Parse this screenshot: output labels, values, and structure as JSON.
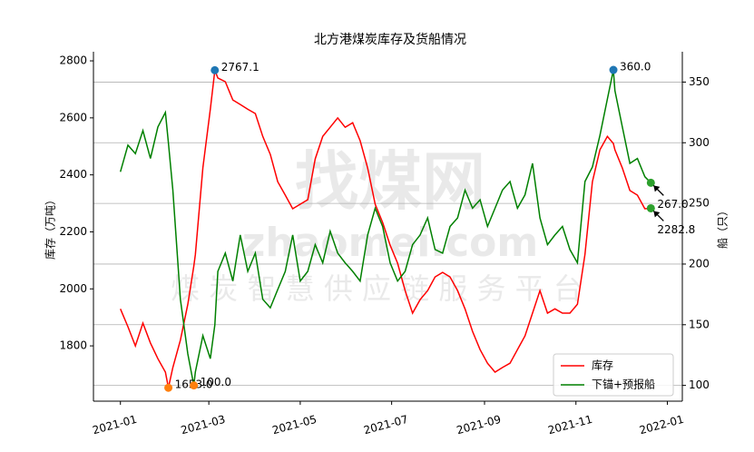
{
  "chart_data": {
    "type": "line",
    "title": "北方港煤炭库存及货船情况",
    "ylabel": "库存（万吨）",
    "y2label": "船（只）",
    "watermark": [
      "找煤网",
      "zhaomei.com",
      "煤 炭 智 慧 供 应 链 服 务 平 台"
    ],
    "x": [
      0,
      5,
      10,
      15,
      20,
      25,
      30,
      32,
      35,
      40,
      45,
      49,
      50,
      55,
      60,
      63,
      65,
      70,
      75,
      80,
      85,
      90,
      95,
      100,
      105,
      110,
      115,
      120,
      125,
      130,
      135,
      140,
      145,
      150,
      155,
      160,
      165,
      170,
      175,
      180,
      185,
      190,
      195,
      200,
      205,
      210,
      215,
      220,
      225,
      230,
      235,
      240,
      245,
      250,
      255,
      260,
      265,
      270,
      275,
      280,
      285,
      290,
      295,
      300,
      305,
      310,
      315,
      320,
      325,
      329,
      330,
      335,
      340,
      345,
      350,
      354
    ],
    "xlim": [
      -18,
      375
    ],
    "xticks": [
      {
        "value": 0,
        "label": "2021-01"
      },
      {
        "value": 59,
        "label": "2021-03"
      },
      {
        "value": 120,
        "label": "2021-05"
      },
      {
        "value": 181,
        "label": "2021-07"
      },
      {
        "value": 243,
        "label": "2021-09"
      },
      {
        "value": 304,
        "label": "2021-11"
      },
      {
        "value": 365,
        "label": "2022-01"
      }
    ],
    "ylim": [
      1606,
      2832
    ],
    "yticks": [
      1800,
      2000,
      2200,
      2400,
      2600,
      2800
    ],
    "y2lim": [
      87,
      375
    ],
    "y2ticks": [
      100,
      150,
      200,
      250,
      300,
      350
    ],
    "grid": true,
    "legend": "lower right",
    "series": [
      {
        "name": "库存",
        "color": "#ff0000",
        "axis": "y",
        "values": [
          1930,
          1867,
          1800,
          1880,
          1810,
          1755,
          1708,
          1653,
          1724,
          1820,
          1946,
          2080,
          2120,
          2425,
          2630,
          2767.1,
          2740,
          2727,
          2663,
          2647,
          2630,
          2615,
          2535,
          2472,
          2376,
          2329,
          2281,
          2297,
          2313,
          2456,
          2535,
          2567,
          2600,
          2567,
          2583,
          2520,
          2424,
          2297,
          2233,
          2153,
          2090,
          1994,
          1915,
          1962,
          1994,
          2042,
          2058,
          2042,
          1994,
          1930,
          1851,
          1787,
          1739,
          1708,
          1724,
          1739,
          1787,
          1835,
          1915,
          1994,
          1915,
          1930,
          1915,
          1915,
          1946,
          2121,
          2376,
          2488,
          2535,
          2510,
          2488,
          2424,
          2345,
          2329,
          2281,
          2282.8
        ]
      },
      {
        "name": "下锚+预报船",
        "color": "#008000",
        "axis": "y2",
        "values": [
          276,
          298,
          291,
          310,
          287,
          313,
          325,
          300,
          261,
          171,
          126,
          100,
          111,
          141,
          122,
          150,
          194,
          209,
          186,
          224,
          194,
          209,
          171,
          164,
          179,
          194,
          224,
          186,
          194,
          216,
          201,
          227,
          209,
          201,
          194,
          186,
          224,
          246,
          231,
          201,
          186,
          194,
          216,
          224,
          238,
          212,
          209,
          231,
          238,
          261,
          246,
          253,
          231,
          246,
          261,
          268,
          246,
          257,
          283,
          238,
          216,
          224,
          231,
          212,
          201,
          268,
          280,
          306,
          336,
          360,
          343,
          313,
          283,
          287,
          272,
          267
        ]
      }
    ],
    "annotations": [
      {
        "series": 0,
        "index": 15,
        "label": "2767.1",
        "color": "#1f77b4"
      },
      {
        "series": 1,
        "index": 69,
        "label": "360.0",
        "color": "#1f77b4"
      },
      {
        "series": 0,
        "index": 7,
        "label": "1653.0",
        "color": "#ff7f0e"
      },
      {
        "series": 1,
        "index": 11,
        "label": "100.0",
        "color": "#ff7f0e"
      },
      {
        "series": 1,
        "index": 75,
        "label": "267.0",
        "color": "#2ca02c",
        "arrow": true
      },
      {
        "series": 0,
        "index": 75,
        "label": "2282.8",
        "color": "#2ca02c",
        "arrow": true
      }
    ]
  }
}
